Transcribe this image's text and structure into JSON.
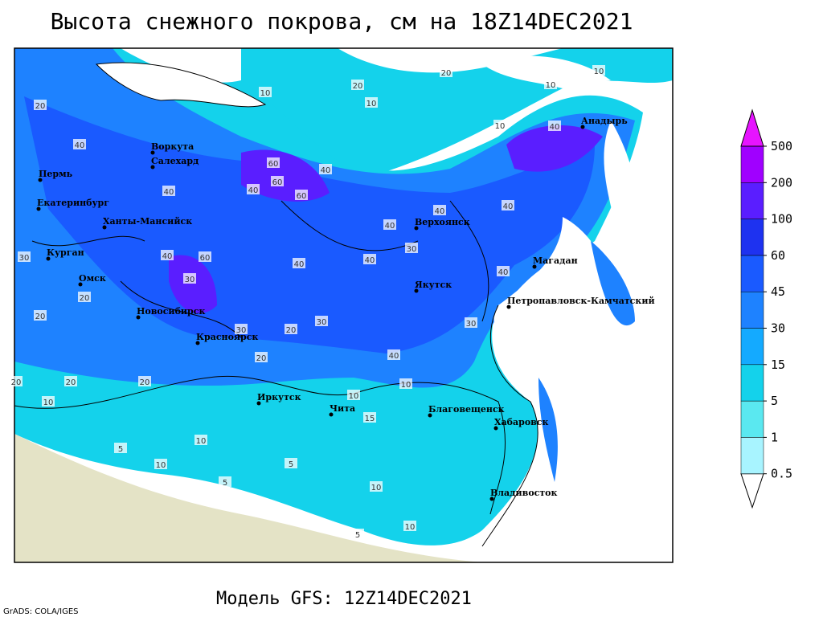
{
  "title": "Высота снежного покрова, см на 18Z14DEC2021",
  "footer": "Модель GFS: 12Z14DEC2021",
  "credit": "GrADS: COLA/IGES",
  "cities": [
    "Воркута",
    "Салехард",
    "Пермь",
    "Екатеринбург",
    "Ханты-Мансийск",
    "Курган",
    "Омск",
    "Новосибирск",
    "Красноярск",
    "Иркутск",
    "Чита",
    "Верхоянск",
    "Якутск",
    "Магадан",
    "Анадырь",
    "Петропавловск-Камчатский",
    "Благовещенск",
    "Хабаровск",
    "Владивосток"
  ],
  "contour_labels": [
    20,
    10,
    10,
    20,
    20,
    10,
    40,
    40,
    60,
    60,
    60,
    40,
    40,
    40,
    40,
    30,
    40,
    40,
    40,
    60,
    30,
    40,
    20,
    30,
    30,
    20,
    20,
    40,
    20,
    10,
    10,
    20,
    20,
    10,
    5,
    5,
    10,
    10,
    5,
    10,
    40,
    40,
    30,
    10,
    10,
    30,
    20,
    5,
    10,
    15
  ],
  "colorbar": {
    "levels": [
      0.5,
      1,
      5,
      15,
      30,
      45,
      60,
      100,
      200,
      500
    ],
    "colors": [
      "#ffffff",
      "#a8f4ff",
      "#5ae8f0",
      "#14d2eb",
      "#14aaff",
      "#1e82ff",
      "#1a5aff",
      "#1e32f0",
      "#5a1eff",
      "#a000ff",
      "#e614ff"
    ]
  }
}
